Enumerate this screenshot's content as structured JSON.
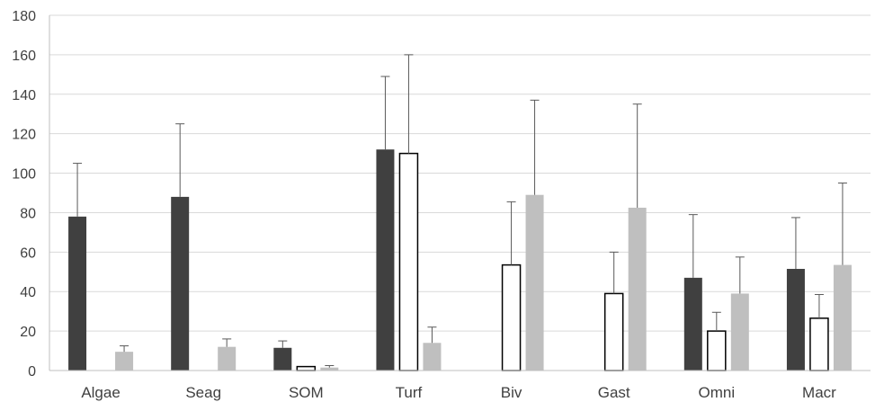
{
  "chart_data": {
    "type": "bar",
    "title": "",
    "xlabel": "",
    "ylabel": "",
    "ylim": [
      0,
      180
    ],
    "yticks": [
      0,
      20,
      40,
      60,
      80,
      100,
      120,
      140,
      160,
      180
    ],
    "grid": true,
    "legend": "none",
    "categories": [
      "Algae",
      "Seag",
      "SOM",
      "Turf",
      "Biv",
      "Gast",
      "Omni",
      "Macr"
    ],
    "series": [
      {
        "color": "#404040",
        "values": [
          78,
          88,
          11.5,
          112,
          null,
          null,
          47,
          51.5
        ],
        "errors": [
          27,
          37,
          3.5,
          37,
          null,
          null,
          32,
          26
        ]
      },
      {
        "color": "#ffffff",
        "stroke": "#000000",
        "values": [
          null,
          null,
          2,
          110,
          53.5,
          39,
          20,
          26.5
        ],
        "errors": [
          null,
          null,
          0,
          50,
          32,
          21,
          9.5,
          12
        ]
      },
      {
        "color": "#bfbfbf",
        "values": [
          9.5,
          12,
          1.5,
          14,
          89,
          82.5,
          39,
          53.5
        ],
        "errors": [
          3,
          4,
          1,
          8,
          48,
          52.5,
          18.5,
          41.5
        ]
      }
    ]
  }
}
